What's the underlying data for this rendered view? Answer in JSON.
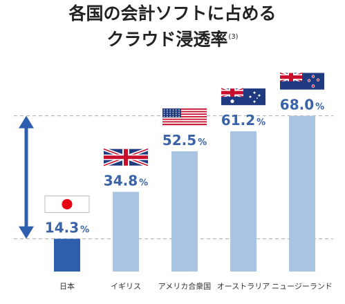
{
  "title_line1": "各国の会計ソフトに占める",
  "title_line2": "クラウド浸透率",
  "title_note": "(3)",
  "colors": {
    "highlight_bar": "#2e5fae",
    "bar": "#a9c3e2",
    "value_text": "#3a63a8",
    "gridline": "#aaaaaa",
    "arrow": "#2e5fae"
  },
  "chart_data": {
    "type": "bar",
    "categories": [
      "日本",
      "イギリス",
      "アメリカ合衆国",
      "オーストラリア",
      "ニュージーランド"
    ],
    "values": [
      14.3,
      34.8,
      52.5,
      61.2,
      68.0
    ],
    "value_labels": [
      "14.3",
      "34.8",
      "52.5",
      "61.2",
      "68.0"
    ],
    "unit": "%",
    "flags": [
      "jp-flag-icon",
      "uk-flag-icon",
      "us-flag-icon",
      "au-flag-icon",
      "nz-flag-icon"
    ],
    "highlight_index": 0,
    "reference_lines": [
      14.3,
      68.0
    ],
    "double_arrow_between": [
      14.3,
      68.0
    ],
    "ylim": [
      0,
      70
    ],
    "grid": false,
    "legend": "none"
  }
}
